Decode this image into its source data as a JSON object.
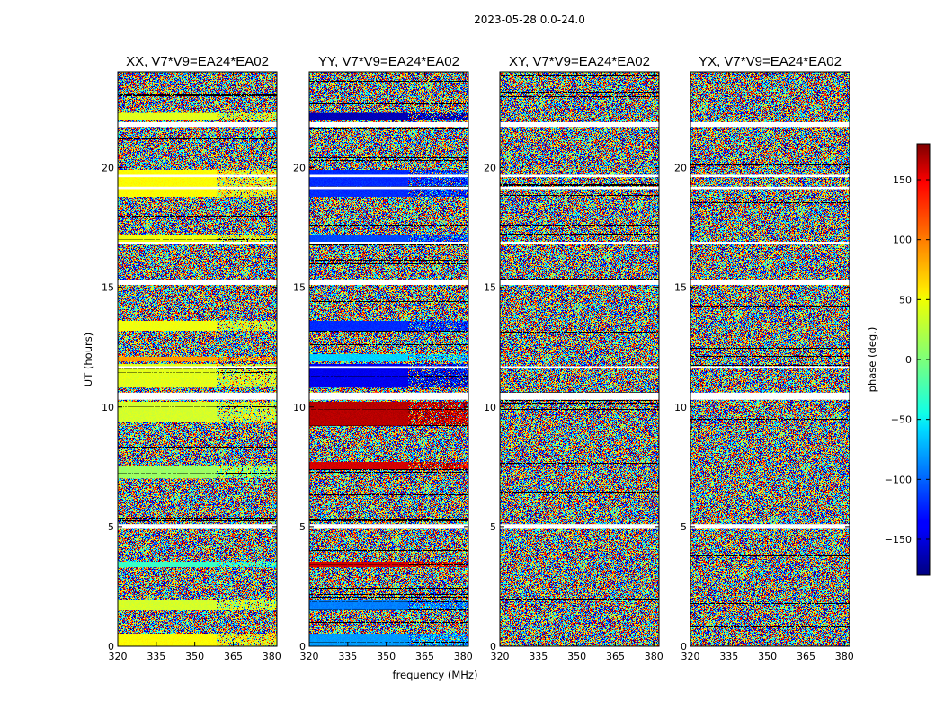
{
  "chart_data": {
    "type": "heatmap",
    "suptitle": "2023-05-28 0.0-24.0",
    "xlabel": "frequency (MHz)",
    "ylabel": "UT (hours)",
    "xlim": [
      320,
      382
    ],
    "ylim": [
      0,
      24
    ],
    "xticks": [
      320,
      335,
      350,
      365,
      380
    ],
    "yticks": [
      0,
      5,
      10,
      15,
      20
    ],
    "panels": [
      {
        "title": "XX, V7*V9=EA24*EA02",
        "coherent_bands": [
          {
            "t0": 0.0,
            "t1": 0.5,
            "phase": 45
          },
          {
            "t0": 1.5,
            "t1": 1.9,
            "phase": 30
          },
          {
            "t0": 3.3,
            "t1": 3.5,
            "phase": -25
          },
          {
            "t0": 7.0,
            "t1": 7.5,
            "phase": 10
          },
          {
            "t0": 9.4,
            "t1": 10.2,
            "phase": 30
          },
          {
            "t0": 10.8,
            "t1": 11.8,
            "phase": 35
          },
          {
            "t0": 11.9,
            "t1": 12.1,
            "phase": 80
          },
          {
            "t0": 13.2,
            "t1": 13.6,
            "phase": 40
          },
          {
            "t0": 16.8,
            "t1": 17.2,
            "phase": 40
          },
          {
            "t0": 18.8,
            "t1": 19.9,
            "phase": 45
          },
          {
            "t0": 22.0,
            "t1": 22.3,
            "phase": 35
          }
        ]
      },
      {
        "title": "YY, V7*V9=EA24*EA02",
        "coherent_bands": [
          {
            "t0": 0.0,
            "t1": 0.5,
            "phase": -80
          },
          {
            "t0": 1.5,
            "t1": 1.9,
            "phase": -90
          },
          {
            "t0": 3.3,
            "t1": 3.5,
            "phase": 150
          },
          {
            "t0": 7.4,
            "t1": 7.7,
            "phase": 150
          },
          {
            "t0": 9.2,
            "t1": 10.2,
            "phase": 160
          },
          {
            "t0": 10.8,
            "t1": 11.8,
            "phase": -140
          },
          {
            "t0": 11.9,
            "t1": 12.2,
            "phase": -60
          },
          {
            "t0": 13.2,
            "t1": 13.6,
            "phase": -120
          },
          {
            "t0": 16.8,
            "t1": 17.2,
            "phase": -110
          },
          {
            "t0": 18.8,
            "t1": 19.9,
            "phase": -120
          },
          {
            "t0": 22.0,
            "t1": 22.3,
            "phase": -160
          }
        ]
      },
      {
        "title": "XY, V7*V9=EA24*EA02",
        "coherent_bands": []
      },
      {
        "title": "YX, V7*V9=EA24*EA02",
        "coherent_bands": []
      }
    ],
    "blank_rows": [
      {
        "t0": 4.9,
        "t1": 5.1
      },
      {
        "t0": 10.3,
        "t1": 10.6
      },
      {
        "t0": 11.6,
        "t1": 11.7
      },
      {
        "t0": 15.1,
        "t1": 15.3
      },
      {
        "t0": 16.8,
        "t1": 16.9
      },
      {
        "t0": 19.1,
        "t1": 19.2
      },
      {
        "t0": 19.6,
        "t1": 19.7
      },
      {
        "t0": 21.7,
        "t1": 21.9
      }
    ],
    "colorbar": {
      "label": "phase (deg.)",
      "range": [
        -180,
        180
      ],
      "ticks": [
        150,
        100,
        50,
        0,
        -50,
        -100,
        -150
      ],
      "tick_labels": [
        "150",
        "100",
        "50",
        "0",
        "−50",
        "−100",
        "−150"
      ],
      "colormap": "jet"
    }
  }
}
